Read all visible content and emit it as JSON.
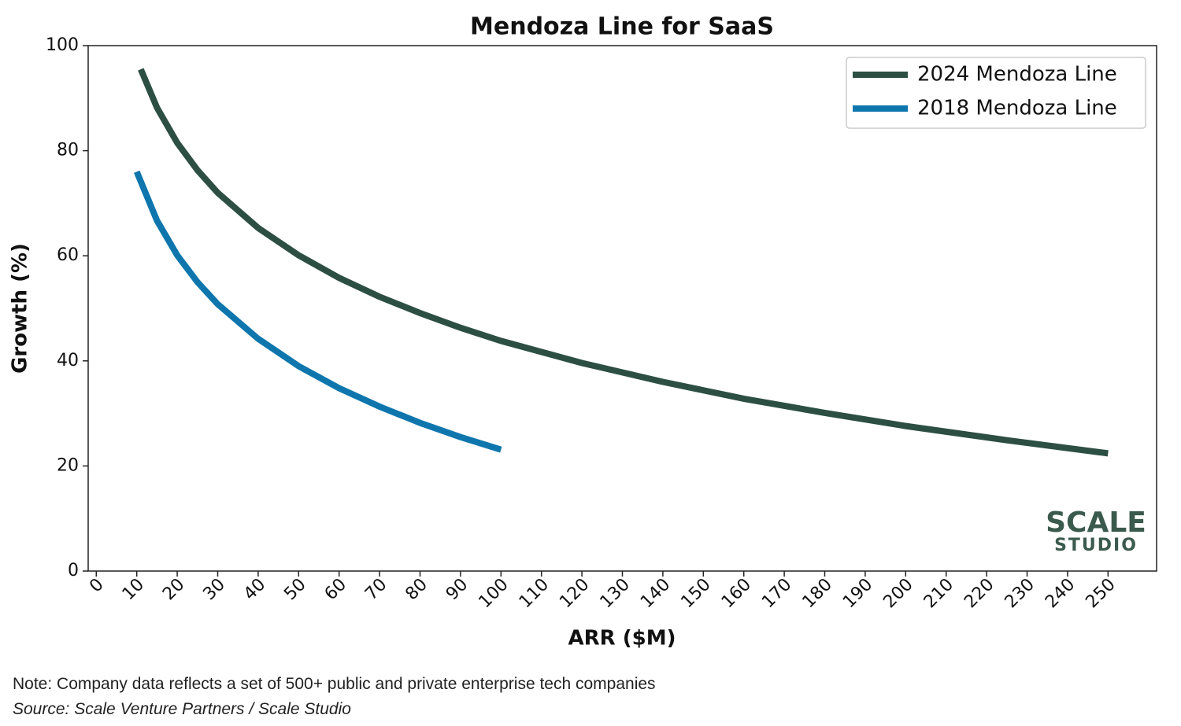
{
  "chart_data": {
    "type": "line",
    "title": "Mendoza Line for SaaS",
    "x_label": "ARR ($M)",
    "y_label": "Growth (%)",
    "series": [
      {
        "name": "2024 Mendoza Line",
        "color": "#2d4f43",
        "x": [
          11,
          15,
          20,
          25,
          30,
          40,
          50,
          60,
          70,
          80,
          90,
          100,
          120,
          140,
          160,
          180,
          200,
          225,
          250
        ],
        "values": [
          95.5,
          88.2,
          81.5,
          76.3,
          72.0,
          65.3,
          60.1,
          55.8,
          52.2,
          49.1,
          46.3,
          43.8,
          39.6,
          36.0,
          32.8,
          30.1,
          27.6,
          24.9,
          22.4
        ]
      },
      {
        "name": "2018 Mendoza Line",
        "color": "#0e76ad",
        "x": [
          10,
          15,
          20,
          25,
          30,
          40,
          50,
          60,
          70,
          80,
          90,
          100
        ],
        "values": [
          76.0,
          66.7,
          60.1,
          55.0,
          50.8,
          44.2,
          39.0,
          34.8,
          31.3,
          28.2,
          25.5,
          23.1
        ]
      }
    ],
    "xlim": [
      -2,
      262
    ],
    "ylim": [
      0,
      100
    ],
    "xticks": [
      0,
      10,
      20,
      30,
      40,
      50,
      60,
      70,
      80,
      90,
      100,
      110,
      120,
      130,
      140,
      150,
      160,
      170,
      180,
      190,
      200,
      210,
      220,
      230,
      240,
      250
    ],
    "yticks": [
      0,
      20,
      40,
      60,
      80,
      100
    ],
    "legend": "upper right",
    "grid": false
  },
  "logo": {
    "line1": "SCALE",
    "line2": "STUDIO"
  },
  "note": "Note: Company data reflects a set of 500+ public and private enterprise tech companies",
  "source": "Source: Scale Venture Partners / Scale Studio"
}
